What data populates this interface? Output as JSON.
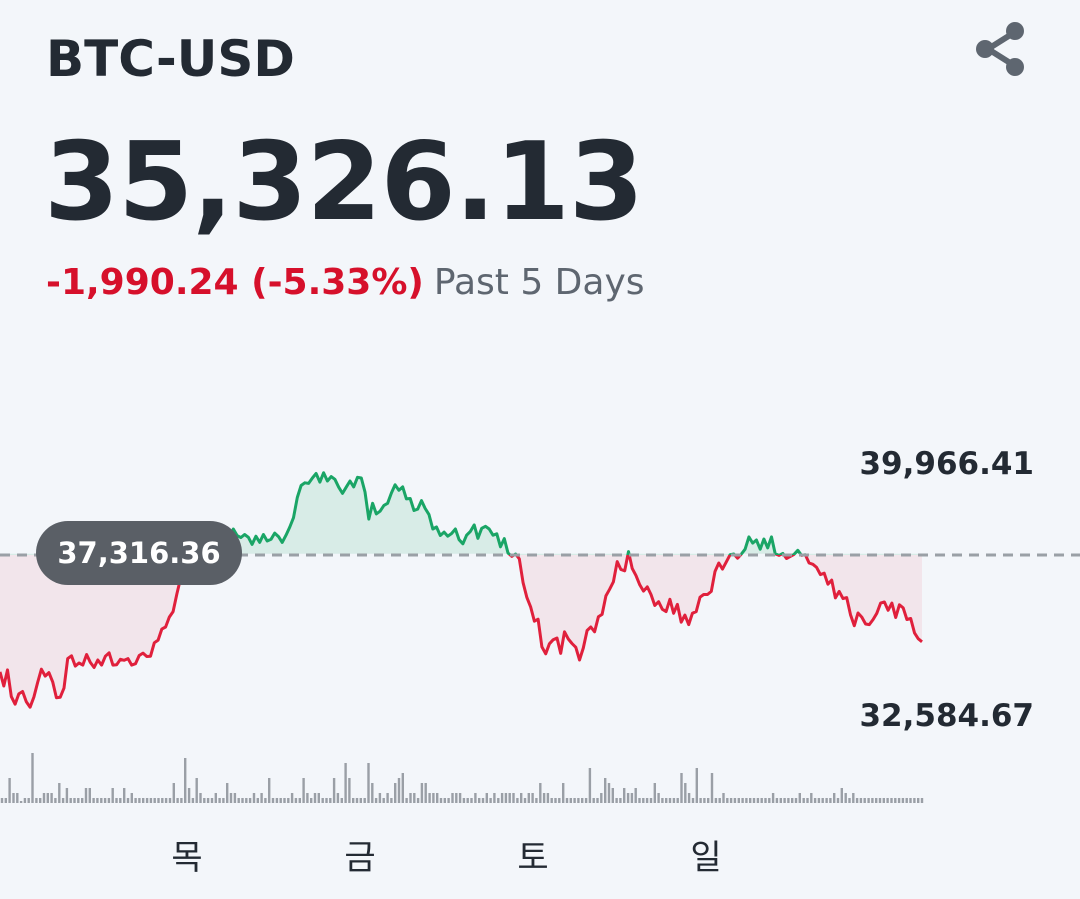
{
  "header": {
    "ticker": "BTC-USD",
    "price": "35,326.13",
    "change": "-1,990.24 (-5.33%)",
    "period": "Past 5 Days"
  },
  "colors": {
    "up": "#1aa566",
    "down": "#e0203c",
    "text": "#232a33",
    "baseline": "#9aa0a6",
    "volume": "#9a9fa6"
  },
  "chart_data": {
    "type": "line",
    "ylim": [
      32584.67,
      39966.41
    ],
    "high_label": "39,966.41",
    "low_label": "32,584.67",
    "baseline": 37316.36,
    "baseline_label": "37,316.36",
    "x_ticks": [
      "목",
      "금",
      "토",
      "일"
    ],
    "tick_indices": [
      46,
      92,
      138,
      184
    ],
    "series": [
      {
        "values": [
          33870,
          33460,
          33930,
          33150,
          32930,
          33230,
          33300,
          33000,
          32840,
          33140,
          33560,
          33950,
          33750,
          33850,
          33580,
          33120,
          33130,
          33400,
          34260,
          34340,
          34040,
          34130,
          34070,
          34380,
          34150,
          34000,
          34220,
          34070,
          34330,
          34430,
          34070,
          34080,
          34240,
          34210,
          34260,
          34070,
          34110,
          34350,
          34420,
          34320,
          34330,
          34720,
          34800,
          35120,
          35180,
          35470,
          35630,
          36150,
          36600,
          37250,
          37050,
          37310,
          37200,
          37360,
          37280,
          37300,
          36990,
          37290,
          37180,
          37590,
          37860,
          37750,
          38040,
          37850,
          37790,
          37880,
          37800,
          37590,
          37830,
          37650,
          37880,
          37690,
          37740,
          37920,
          37820,
          37650,
          37860,
          38100,
          38370,
          38960,
          39310,
          39390,
          39370,
          39530,
          39660,
          39410,
          39680,
          39440,
          39570,
          39490,
          39260,
          39080,
          39260,
          39440,
          39270,
          39550,
          39530,
          39120,
          38330,
          38790,
          38480,
          38560,
          38730,
          38790,
          39090,
          39330,
          39170,
          39270,
          38920,
          38930,
          38580,
          38620,
          38870,
          38640,
          38460,
          38040,
          38100,
          37850,
          37950,
          37830,
          37910,
          38040,
          37730,
          37610,
          37860,
          37970,
          38160,
          37770,
          38060,
          38120,
          38040,
          37860,
          37900,
          37520,
          37760,
          37340,
          37240,
          37310,
          37170,
          36470,
          36040,
          35770,
          35350,
          35410,
          34600,
          34400,
          34690,
          34810,
          34860,
          34410,
          35040,
          34830,
          34700,
          34590,
          34220,
          34570,
          35080,
          35180,
          35040,
          35480,
          35550,
          36090,
          36280,
          36500,
          37090,
          36860,
          36820,
          37380,
          36890,
          36680,
          36410,
          36230,
          36350,
          36130,
          35810,
          35920,
          35700,
          35630,
          35990,
          35580,
          35840,
          35320,
          35530,
          35250,
          35580,
          35630,
          36050,
          36130,
          36130,
          36220,
          36800,
          37050,
          36870,
          37080,
          37290,
          37310,
          37190,
          37310,
          37450,
          37810,
          37630,
          37720,
          37450,
          37750,
          37490,
          37810,
          37320,
          37270,
          37330,
          37180,
          37240,
          37300,
          37420,
          37270,
          37290,
          37050,
          37010,
          36920,
          36710,
          36750,
          36430,
          36550,
          36030,
          36220,
          36010,
          36040,
          35540,
          35220,
          35590,
          35470,
          35270,
          35250,
          35400,
          35580,
          35880,
          35910,
          35670,
          35880,
          35460,
          35830,
          35740,
          35400,
          35430,
          35010,
          34840,
          34750
        ]
      }
    ],
    "volume": [
      1,
      1,
      5,
      2,
      2,
      0,
      1,
      1,
      10,
      1,
      1,
      2,
      2,
      2,
      1,
      4,
      1,
      3,
      1,
      1,
      1,
      1,
      3,
      3,
      1,
      1,
      1,
      1,
      1,
      3,
      1,
      1,
      3,
      1,
      2,
      1,
      1,
      1,
      1,
      1,
      1,
      1,
      1,
      1,
      1,
      4,
      1,
      1,
      9,
      3,
      1,
      5,
      2,
      1,
      1,
      1,
      2,
      1,
      1,
      4,
      2,
      2,
      1,
      1,
      1,
      1,
      2,
      1,
      2,
      1,
      5,
      1,
      1,
      1,
      1,
      1,
      2,
      1,
      1,
      5,
      2,
      1,
      2,
      2,
      1,
      1,
      1,
      5,
      2,
      1,
      8,
      5,
      1,
      1,
      1,
      1,
      8,
      4,
      1,
      2,
      1,
      2,
      1,
      4,
      5,
      6,
      1,
      2,
      2,
      1,
      4,
      4,
      2,
      2,
      2,
      1,
      1,
      1,
      2,
      2,
      2,
      1,
      1,
      1,
      2,
      1,
      1,
      2,
      1,
      2,
      1,
      2,
      2,
      2,
      2,
      1,
      2,
      1,
      2,
      2,
      1,
      4,
      2,
      2,
      1,
      1,
      1,
      4,
      1,
      1,
      1,
      1,
      1,
      1,
      7,
      1,
      1,
      2,
      5,
      4,
      3,
      1,
      1,
      3,
      2,
      2,
      3,
      1,
      1,
      1,
      1,
      4,
      2,
      1,
      1,
      1,
      1,
      1,
      6,
      4,
      2,
      1,
      7,
      1,
      1,
      1,
      6,
      1,
      1,
      2,
      1,
      1,
      1,
      1,
      1,
      1,
      1,
      1,
      1,
      1,
      1,
      1,
      2,
      1,
      1,
      1,
      1,
      1,
      1,
      2,
      1,
      1,
      2,
      1,
      1,
      1,
      1,
      1,
      2,
      1,
      3,
      2,
      1,
      2,
      1,
      1,
      1,
      1,
      1,
      1,
      1,
      1,
      1,
      1,
      1,
      1,
      1,
      1,
      1,
      1,
      1,
      1
    ]
  }
}
